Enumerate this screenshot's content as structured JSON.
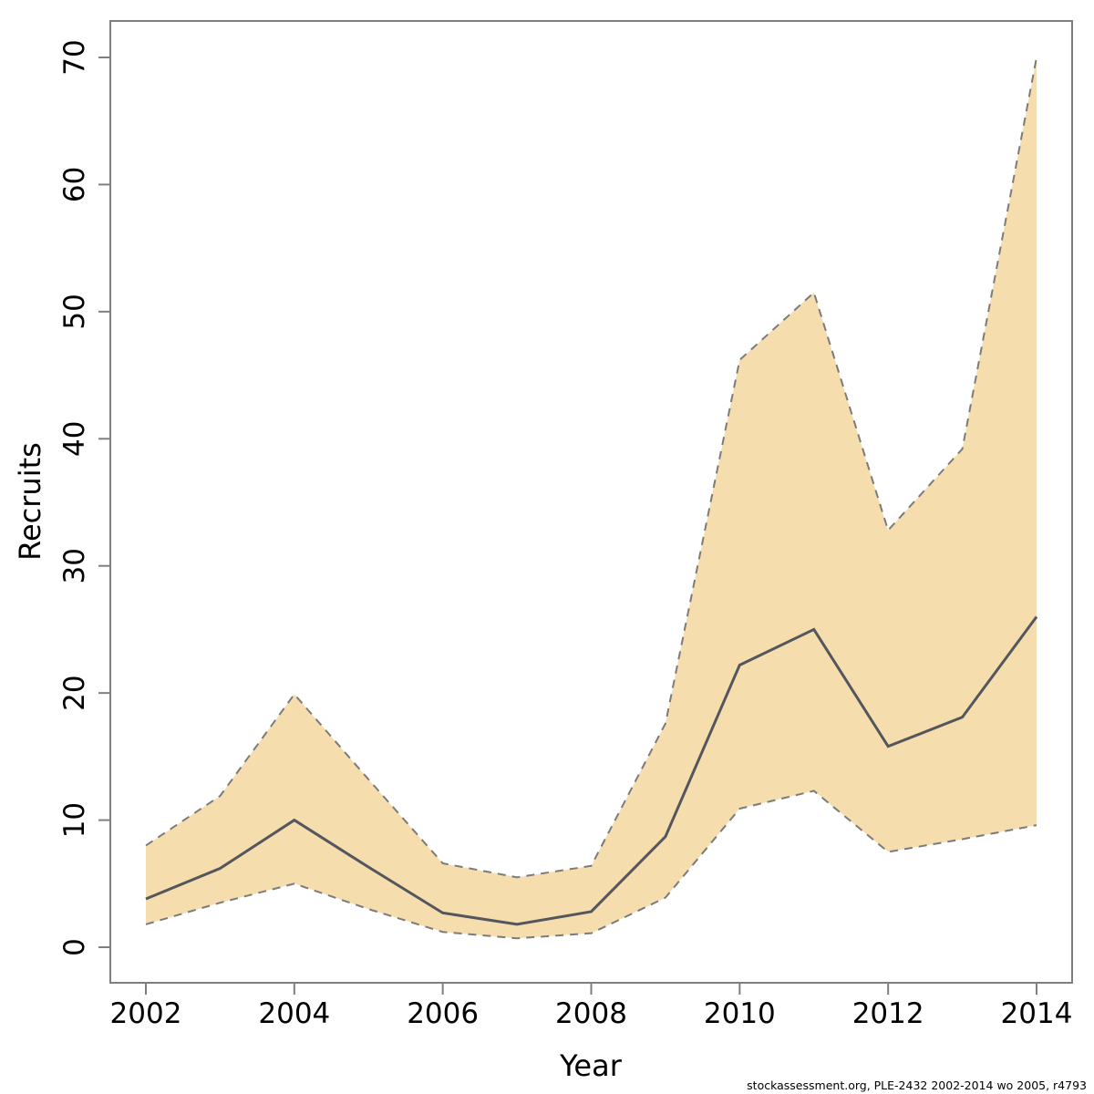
{
  "chart_data": {
    "type": "line",
    "title": "",
    "xlabel": "Year",
    "ylabel": "Recruits",
    "x": [
      2002,
      2003,
      2004,
      2005,
      2006,
      2007,
      2008,
      2009,
      2010,
      2011,
      2012,
      2013,
      2014
    ],
    "series": [
      {
        "name": "recruits_estimate",
        "style": "solid",
        "values": [
          3.8,
          6.2,
          10.0,
          6.3,
          2.7,
          1.8,
          2.8,
          8.7,
          22.2,
          25.0,
          15.8,
          18.1,
          26.0
        ]
      },
      {
        "name": "ci_lower",
        "style": "dashed",
        "values": [
          1.8,
          3.5,
          5.0,
          3.0,
          1.2,
          0.7,
          1.1,
          3.9,
          10.9,
          12.3,
          7.5,
          8.5,
          9.6
        ]
      },
      {
        "name": "ci_upper",
        "style": "dashed",
        "values": [
          8.0,
          11.9,
          19.9,
          13.2,
          6.6,
          5.5,
          6.4,
          17.6,
          46.2,
          51.5,
          32.8,
          39.2,
          70.0
        ]
      }
    ],
    "band": {
      "lower_series": "ci_lower",
      "upper_series": "ci_upper"
    },
    "xticks": [
      2002,
      2004,
      2006,
      2008,
      2010,
      2012,
      2014
    ],
    "yticks": [
      0,
      10,
      20,
      30,
      40,
      50,
      60,
      70
    ],
    "xlim": [
      2002,
      2014
    ],
    "ylim": [
      0,
      70
    ],
    "grid": false,
    "legend": null,
    "colors": {
      "band_fill": "#f5ddad",
      "band_border": "#7b7b7b",
      "estimate_line": "#53575d",
      "axis_box": "#7f7f7f",
      "tick": "#7f7f7f",
      "label": "#000000"
    }
  },
  "footer": {
    "text": "stockassessment.org, PLE-2432  2002-2014  wo  2005, r4793"
  }
}
